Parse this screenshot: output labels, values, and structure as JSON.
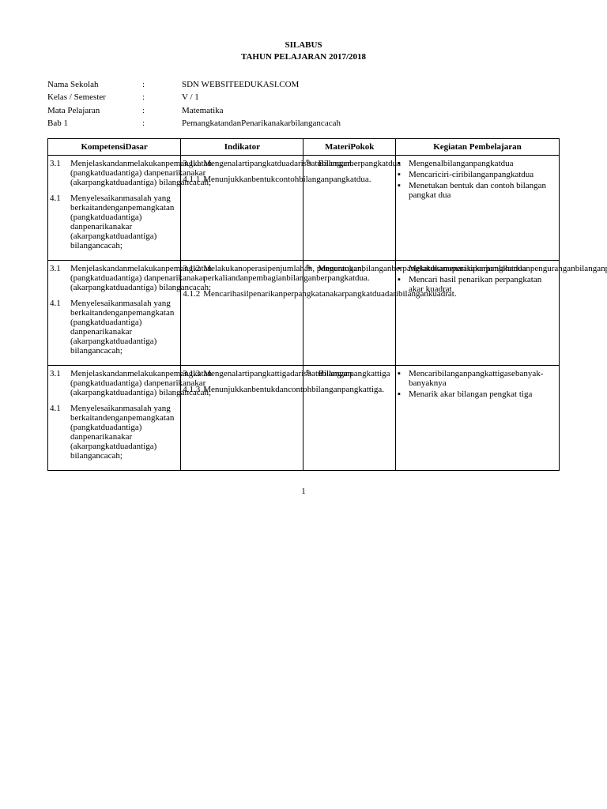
{
  "title": {
    "line1": "SILABUS",
    "line2": "TAHUN PELAJARAN 2017/2018"
  },
  "info": [
    {
      "label": "Nama Sekolah",
      "value": "SDN WEBSITEEDUKASI.COM"
    },
    {
      "label": "Kelas / Semester",
      "value": "V / 1"
    },
    {
      "label": "Mata Pelajaran",
      "value": "Matematika"
    },
    {
      "label": "Bab 1",
      "value": "PemangkatandanPenarikanakarbilangancacah"
    }
  ],
  "headers": {
    "col1": "KompetensiDasar",
    "col2": "Indikator",
    "col3": "MateriPokok",
    "col4": "Kegiatan Pembelajaran"
  },
  "rows": [
    {
      "kd": [
        {
          "num": "3.1",
          "text": "Menjelaskandanmelakukanpemangkatan (pangkatduadantiga) danpenarikanakar (akarpangkatduadantiga) bilangancacah;"
        },
        {
          "num": "4.1",
          "text": "Menyelesaikanmasalah yang berkaitandenganpemangkatan (pangkatduadantiga) danpenarikanakar (akarpangkatduadantiga) bilangancacah;"
        }
      ],
      "ind": [
        {
          "num": "3.1.1",
          "text": "Mengenalartipangkatduadarisuatubilangan."
        },
        {
          "num": "4.1.1",
          "text": "Menunjukkanbentukcontohbilanganpangkatdua."
        }
      ],
      "mat": {
        "icon": "✎",
        "text": "Bilanganberpangkatdua"
      },
      "keg": [
        "Mengenalbilanganpangkatdua",
        "Mencariciri-ciribilanganpangkatdua",
        "Menetukan bentuk dan contoh bilangan pangkat dua"
      ]
    },
    {
      "kd": [
        {
          "num": "3.1",
          "text": "Menjelaskandanmelakukanpemangkatan (pangkatduadantiga) danpenarikanakar (akarpangkatduadantiga) bilangancacah;"
        },
        {
          "num": "4.1",
          "text": "Menyelesaikanmasalah yang berkaitandenganpemangkatan (pangkatduadantiga) danpenarikanakar (akarpangkatduadantiga) bilangancacah;"
        }
      ],
      "ind": [
        {
          "num": "3.1.2",
          "text": "Melakukanoperasipenjumlahan, pengurangan, perkaliandanpembagianbilanganberpangkatdua."
        },
        {
          "num": "4.1.2",
          "text": "Mencarihasilpenarikanperpangkatanakarpangkatduadaribilangankuadrat."
        }
      ],
      "mat": {
        "icon": "✎",
        "text": "Menentukanbilanganberpangkatduamenarikakarpangkatdua"
      },
      "keg": [
        "Melakukanoperasipenjumlahandanpenguranganbilanganpangkatduadengankelompoknya.",
        "Mencari hasil penarikan perpangkatan akar kuadrat"
      ]
    },
    {
      "kd": [
        {
          "num": "3.1",
          "text": "Menjelaskandanmelakukanpemangkatan (pangkatduadantiga) danpenarikanakar (akarpangkatduadantiga) bilangancacah;"
        },
        {
          "num": "4.1",
          "text": "Menyelesaikanmasalah yang berkaitandenganpemangkatan (pangkatduadantiga) danpenarikanakar (akarpangkatduadantiga) bilangancacah;"
        }
      ],
      "ind": [
        {
          "num": "3.1.3",
          "text": "Mengenalartipangkattigadarisuatubilangan."
        },
        {
          "num": "4.1.3",
          "text": "Menunjukkanbentukdancontohbilanganpangkattiga."
        }
      ],
      "mat": {
        "icon": "✎",
        "text": "Bilanganpangkattiga"
      },
      "keg": [
        "Mencaribilanganpangkattigasebanyak-banyaknya",
        "Menarik akar bilangan pengkat tiga"
      ]
    }
  ],
  "page_number": "1"
}
